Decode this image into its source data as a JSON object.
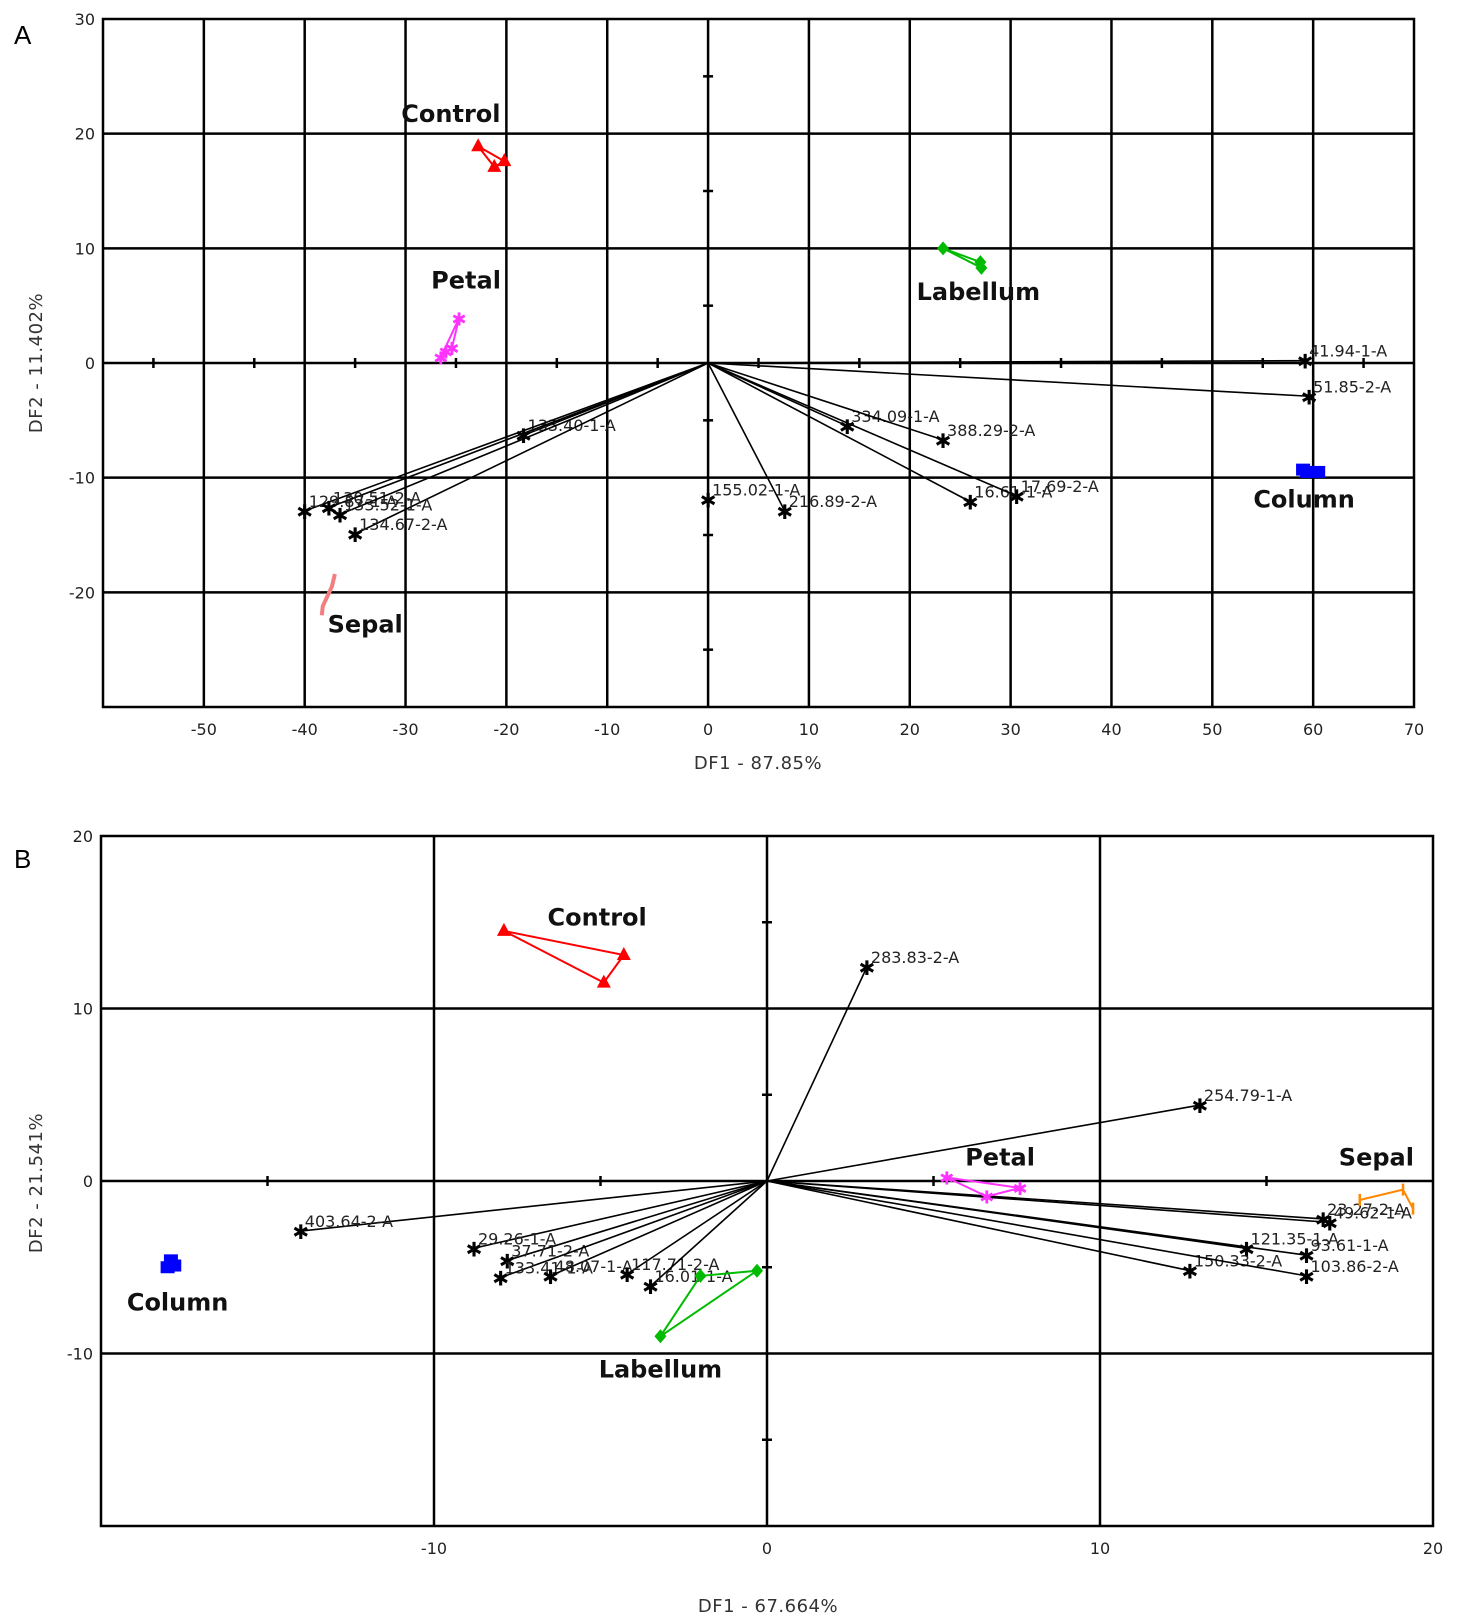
{
  "chart_data": [
    {
      "panel": "A",
      "type": "scatter",
      "xlabel": "DF1 - 87.85%",
      "ylabel": "DF2 - 11.402%",
      "xlim": [
        -60,
        70
      ],
      "ylim": [
        -30,
        30
      ],
      "x_ticks": [
        -50,
        -40,
        -30,
        -20,
        -10,
        0,
        10,
        20,
        30,
        40,
        50,
        60,
        70
      ],
      "y_ticks": [
        30,
        20,
        10,
        0,
        -10,
        -20
      ],
      "grid_x": [
        -50,
        -40,
        -30,
        -20,
        -10,
        0,
        10,
        20,
        30,
        40,
        50,
        60
      ],
      "grid_y": [
        20,
        10,
        0,
        -10,
        -20
      ],
      "minor_x": [
        -55,
        -45,
        -35,
        -25,
        -15,
        -5,
        5,
        15,
        25,
        35,
        45,
        55,
        65
      ],
      "minor_y": [
        25,
        15,
        5,
        -5,
        -15,
        -25
      ],
      "groups": [
        {
          "name": "Control",
          "color": "#ff0000",
          "marker": "triangle",
          "points": [
            [
              -22.8,
              18.9
            ],
            [
              -20.2,
              17.6
            ],
            [
              -21.2,
              17.1
            ]
          ],
          "label_at": [
            -25.5,
            21.0
          ]
        },
        {
          "name": "Labellum",
          "color": "#00bb00",
          "marker": "diamond",
          "points": [
            [
              23.3,
              10.0
            ],
            [
              27.0,
              8.8
            ],
            [
              27.1,
              8.3
            ]
          ],
          "label_at": [
            26.8,
            5.5
          ]
        },
        {
          "name": "Petal",
          "color": "#ff33ff",
          "marker": "star",
          "points": [
            [
              -24.7,
              3.9
            ],
            [
              -25.4,
              1.3
            ],
            [
              -26.0,
              1.0
            ],
            [
              -26.5,
              0.5
            ]
          ],
          "label_at": [
            -24.0,
            6.5
          ]
        },
        {
          "name": "Column",
          "color": "#0000ff",
          "marker": "square",
          "points": [
            [
              59.0,
              -9.3
            ],
            [
              59.4,
              -9.5
            ],
            [
              60.5,
              -9.5
            ]
          ],
          "label_at": [
            59.1,
            -12.6
          ]
        },
        {
          "name": "Sepal",
          "color": "#f08080",
          "marker": "line",
          "points": [
            [
              -37.0,
              -18.4
            ],
            [
              -37.3,
              -19.5
            ],
            [
              -38.2,
              -21.2
            ],
            [
              -38.3,
              -22.0
            ]
          ],
          "label_at": [
            -34.0,
            -23.5
          ]
        }
      ],
      "vectors": [
        {
          "label": "41.94-1-A",
          "x": 59.2,
          "y": 0.2
        },
        {
          "label": "51.85-2-A",
          "x": 59.6,
          "y": -2.9
        },
        {
          "label": "334.09-1-A",
          "x": 13.8,
          "y": -5.5
        },
        {
          "label": "388.29-2-A",
          "x": 23.3,
          "y": -6.7
        },
        {
          "label": "16.61-1-A",
          "x": 26.0,
          "y": -12.1
        },
        {
          "label": "17.69-2-A",
          "x": 30.6,
          "y": -11.6
        },
        {
          "label": "155.02-1-A",
          "x": 0.0,
          "y": -11.9
        },
        {
          "label": "216.89-2-A",
          "x": 7.6,
          "y": -12.9
        },
        {
          "label": "133.40-1-A",
          "x": -18.3,
          "y": -6.3
        },
        {
          "label": "134.67-2-A",
          "x": -35.0,
          "y": -14.9
        },
        {
          "label": "129.87-1-A",
          "x": -40.0,
          "y": -12.9
        },
        {
          "label": "130.51-2-A",
          "x": -37.6,
          "y": -12.6
        },
        {
          "label": "133.52-1-A",
          "x": -36.5,
          "y": -13.2
        }
      ]
    },
    {
      "panel": "B",
      "type": "scatter",
      "xlabel": "DF1 - 67.664%",
      "ylabel": "DF2 - 21.541%",
      "xlim": [
        -20,
        20
      ],
      "ylim": [
        -20,
        20
      ],
      "x_ticks": [
        -10,
        0,
        10,
        20
      ],
      "y_ticks": [
        20,
        10,
        0,
        -10
      ],
      "grid_x": [
        -10,
        0,
        10
      ],
      "grid_y": [
        10,
        0,
        -10
      ],
      "minor_x": [
        -15,
        -5,
        5,
        15
      ],
      "minor_y": [
        15,
        5,
        -5,
        -15
      ],
      "groups": [
        {
          "name": "Control",
          "color": "#ff0000",
          "marker": "triangle",
          "points": [
            [
              -7.9,
              14.5
            ],
            [
              -4.3,
              13.1
            ],
            [
              -4.9,
              11.5
            ]
          ],
          "label_at": [
            -5.1,
            14.8
          ]
        },
        {
          "name": "Petal",
          "color": "#ff33ff",
          "marker": "star",
          "points": [
            [
              5.4,
              0.2
            ],
            [
              7.6,
              -0.4
            ],
            [
              6.6,
              -0.9
            ]
          ],
          "label_at": [
            7.0,
            0.9
          ]
        },
        {
          "name": "Sepal",
          "color": "#ff8800",
          "marker": "tick",
          "points": [
            [
              17.8,
              -1.1
            ],
            [
              19.1,
              -0.5
            ],
            [
              19.4,
              -1.6
            ]
          ],
          "label_at": [
            18.3,
            0.9
          ]
        },
        {
          "name": "Column",
          "color": "#0000ff",
          "marker": "square",
          "points": [
            [
              -17.9,
              -4.6
            ],
            [
              -18.0,
              -5.0
            ],
            [
              -17.8,
              -4.9
            ]
          ],
          "label_at": [
            -17.7,
            -7.5
          ]
        },
        {
          "name": "Labellum",
          "color": "#00bb00",
          "marker": "diamond",
          "points": [
            [
              -0.3,
              -5.2
            ],
            [
              -2.0,
              -5.5
            ],
            [
              -3.2,
              -9.0
            ]
          ],
          "label_at": [
            -3.2,
            -11.4
          ]
        }
      ],
      "vectors": [
        {
          "label": "283.83-2-A",
          "x": 3.0,
          "y": 12.4
        },
        {
          "label": "254.79-1-A",
          "x": 13.0,
          "y": 4.4
        },
        {
          "label": "403.64-2-A",
          "x": -14.0,
          "y": -2.9
        },
        {
          "label": "29.26-1-A",
          "x": -8.8,
          "y": -3.9
        },
        {
          "label": "37.71-2-A",
          "x": -7.8,
          "y": -4.6
        },
        {
          "label": "133.41-1-A",
          "x": -8.0,
          "y": -5.6
        },
        {
          "label": "48.07-1-A",
          "x": -6.5,
          "y": -5.5
        },
        {
          "label": "117.71-2-A",
          "x": -4.2,
          "y": -5.4
        },
        {
          "label": "16.01-1-A",
          "x": -3.5,
          "y": -6.1
        },
        {
          "label": "23.27-2-A",
          "x": 16.7,
          "y": -2.2
        },
        {
          "label": "49.62-1-A",
          "x": 16.9,
          "y": -2.4
        },
        {
          "label": "121.35-1-A",
          "x": 14.4,
          "y": -3.9
        },
        {
          "label": "93.61-1-A",
          "x": 16.2,
          "y": -4.3
        },
        {
          "label": "150.33-2-A",
          "x": 12.7,
          "y": -5.2
        },
        {
          "label": "103.86-2-A",
          "x": 16.2,
          "y": -5.5
        }
      ]
    }
  ]
}
